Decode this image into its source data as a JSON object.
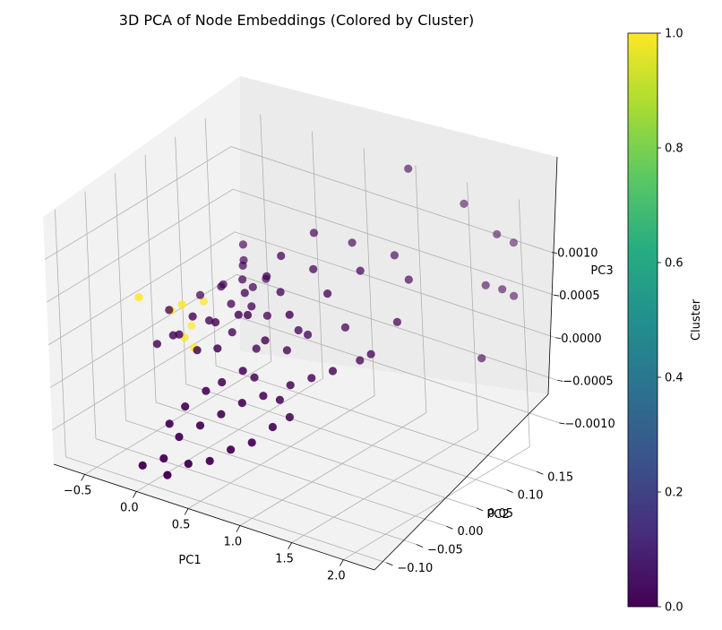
{
  "chart_data": {
    "type": "scatter",
    "title": "3D PCA of Node Embeddings (Colored by Cluster)",
    "xlabel": "PC1",
    "ylabel": "PC2",
    "zlabel": "PC3",
    "colorbar_label": "Cluster",
    "xlim": [
      -0.8,
      2.3
    ],
    "ylim": [
      -0.12,
      0.19
    ],
    "zlim": [
      -0.0014,
      0.0015
    ],
    "x_ticks": [
      "−0.5",
      "0.0",
      "0.5",
      "1.0",
      "1.5",
      "2.0"
    ],
    "y_ticks": [
      "−0.10",
      "−0.05",
      "0.00",
      "0.05",
      "0.10",
      "0.15"
    ],
    "z_ticks": [
      "−0.0010",
      "−0.0005",
      "0.0000",
      "0.0005",
      "0.0010"
    ],
    "colorbar_ticks": [
      "0.0",
      "0.2",
      "0.4",
      "0.6",
      "0.8",
      "1.0"
    ],
    "colormap": "viridis",
    "colorbar_range": [
      0.0,
      1.0
    ],
    "grid": true,
    "colors": {
      "cluster_0": "#440154",
      "cluster_1": "#fde725",
      "pane": "#f2f2f2",
      "grid": "#b0b0b0"
    },
    "series": [
      {
        "values": [
          {
            "x": -0.2,
            "y": 0.0,
            "z": 0.0002,
            "c": 1
          },
          {
            "x": -0.55,
            "y": 0.04,
            "z": -0.00018,
            "c": 1
          },
          {
            "x": -0.6,
            "y": 0.08,
            "z": -0.00055,
            "c": 1
          },
          {
            "x": -0.35,
            "y": 0.06,
            "z": -8e-05,
            "c": 1
          },
          {
            "x": -0.25,
            "y": 0.01,
            "z": -0.00025,
            "c": 1
          },
          {
            "x": -0.5,
            "y": -0.02,
            "z": 0.00025,
            "c": 1
          },
          {
            "x": -0.22,
            "y": 0.02,
            "z": -0.0004,
            "c": 1
          },
          {
            "x": -0.32,
            "y": 0.05,
            "z": 5e-05,
            "c": 0
          },
          {
            "x": -0.15,
            "y": 0.06,
            "z": 0.0002,
            "c": 0
          },
          {
            "x": -0.05,
            "y": 0.04,
            "z": 0.0003,
            "c": 0
          },
          {
            "x": 0.05,
            "y": 0.06,
            "z": 0.0005,
            "c": 0
          },
          {
            "x": 0.1,
            "y": 0.03,
            "z": 0.0002,
            "c": 0
          },
          {
            "x": 0.2,
            "y": 0.05,
            "z": 0.00035,
            "c": 0
          },
          {
            "x": 0.3,
            "y": 0.02,
            "z": 0.00045,
            "c": 0
          },
          {
            "x": 0.4,
            "y": 0.04,
            "z": 0.0006,
            "c": 0
          },
          {
            "x": 0.15,
            "y": 0.08,
            "z": 0.0003,
            "c": 0
          },
          {
            "x": -0.1,
            "y": 0.0,
            "z": 0.0001,
            "c": 0
          },
          {
            "x": 0.0,
            "y": 0.01,
            "z": 5e-05,
            "c": 0
          },
          {
            "x": 0.12,
            "y": 0.0,
            "z": 0.00012,
            "c": 0
          },
          {
            "x": 0.22,
            "y": 0.01,
            "z": 0.0,
            "c": 0
          },
          {
            "x": -0.45,
            "y": 0.02,
            "z": -5e-05,
            "c": 0
          },
          {
            "x": -0.4,
            "y": -0.01,
            "z": -0.0003,
            "c": 0
          },
          {
            "x": -0.3,
            "y": 0.0,
            "z": -0.0002,
            "c": 0
          },
          {
            "x": -0.18,
            "y": -0.01,
            "z": -0.0001,
            "c": 0
          },
          {
            "x": 0.05,
            "y": -0.02,
            "z": -0.00015,
            "c": 0
          },
          {
            "x": 0.35,
            "y": 0.0,
            "z": 0.0003,
            "c": 0
          },
          {
            "x": 0.55,
            "y": 0.04,
            "z": 0.0009,
            "c": 0
          },
          {
            "x": 0.7,
            "y": 0.07,
            "z": 0.0011,
            "c": 0
          },
          {
            "x": 0.8,
            "y": 0.05,
            "z": 0.0008,
            "c": 0
          },
          {
            "x": 0.95,
            "y": 0.09,
            "z": 0.001,
            "c": 0
          },
          {
            "x": 0.65,
            "y": 0.02,
            "z": 0.0006,
            "c": 0
          },
          {
            "x": 0.5,
            "y": -0.01,
            "z": 0.0004,
            "c": 0
          },
          {
            "x": 0.85,
            "y": 0.0,
            "z": 0.0005,
            "c": 0
          },
          {
            "x": 1.05,
            "y": 0.03,
            "z": 0.0007,
            "c": 0
          },
          {
            "x": 1.2,
            "y": 0.06,
            "z": 0.0009,
            "c": 0
          },
          {
            "x": 1.3,
            "y": 0.1,
            "z": 0.00095,
            "c": 0
          },
          {
            "x": 1.55,
            "y": 0.08,
            "z": 0.00085,
            "c": 0
          },
          {
            "x": 1.7,
            "y": 0.15,
            "z": 0.0015,
            "c": 0
          },
          {
            "x": 1.35,
            "y": 0.12,
            "z": 0.0019,
            "c": 0
          },
          {
            "x": 0.45,
            "y": 0.03,
            "z": 0.0002,
            "c": 0
          },
          {
            "x": 0.25,
            "y": -0.02,
            "z": -5e-05,
            "c": 0
          },
          {
            "x": 0.6,
            "y": 0.0,
            "z": 0.0001,
            "c": 0
          },
          {
            "x": 0.75,
            "y": 0.01,
            "z": 0.0,
            "c": 0
          },
          {
            "x": 0.55,
            "y": -0.03,
            "z": -0.00015,
            "c": 0
          },
          {
            "x": 0.4,
            "y": -0.04,
            "z": -0.0003,
            "c": 0
          },
          {
            "x": 0.3,
            "y": -0.05,
            "z": -0.0004,
            "c": 0
          },
          {
            "x": 0.15,
            "y": -0.06,
            "z": -0.0006,
            "c": 0
          },
          {
            "x": 0.05,
            "y": -0.07,
            "z": -0.0008,
            "c": 0
          },
          {
            "x": 0.2,
            "y": -0.08,
            "z": -0.00085,
            "c": 0
          },
          {
            "x": 0.35,
            "y": -0.07,
            "z": -0.0007,
            "c": 0
          },
          {
            "x": 0.5,
            "y": -0.06,
            "z": -0.00055,
            "c": 0
          },
          {
            "x": 0.65,
            "y": -0.05,
            "z": -0.0004,
            "c": 0
          },
          {
            "x": 0.8,
            "y": -0.04,
            "z": -0.0003,
            "c": 0
          },
          {
            "x": 0.95,
            "y": -0.02,
            "z": -0.0002,
            "c": 0
          },
          {
            "x": 1.1,
            "y": -0.01,
            "z": -0.0001,
            "c": 0
          },
          {
            "x": 1.25,
            "y": 0.0,
            "z": 0.0,
            "c": 0
          },
          {
            "x": 1.4,
            "y": 0.02,
            "z": 0.0001,
            "c": 0
          },
          {
            "x": 1.15,
            "y": 0.04,
            "z": 0.0003,
            "c": 0
          },
          {
            "x": 0.9,
            "y": 0.02,
            "z": 0.0002,
            "c": 0
          },
          {
            "x": 0.7,
            "y": -0.08,
            "z": -0.0008,
            "c": 0
          },
          {
            "x": 0.55,
            "y": -0.09,
            "z": -0.00095,
            "c": 0
          },
          {
            "x": 0.4,
            "y": -0.1,
            "z": -0.001,
            "c": 0
          },
          {
            "x": 0.85,
            "y": -0.07,
            "z": -0.0007,
            "c": 0
          },
          {
            "x": 1.0,
            "y": -0.06,
            "z": -0.0005,
            "c": 0
          },
          {
            "x": 0.1,
            "y": -0.09,
            "z": -0.0011,
            "c": 0
          },
          {
            "x": -0.05,
            "y": -0.1,
            "z": -0.0012,
            "c": 0
          },
          {
            "x": 0.25,
            "y": -0.11,
            "z": -0.00115,
            "c": 0
          },
          {
            "x": 0.6,
            "y": -0.02,
            "z": -0.00025,
            "c": 0
          },
          {
            "x": 0.45,
            "y": 0.01,
            "z": -0.0001,
            "c": 0
          },
          {
            "x": 0.75,
            "y": 0.03,
            "z": 0.00015,
            "c": 0
          },
          {
            "x": 0.9,
            "y": -0.03,
            "z": -0.00035,
            "c": 0
          },
          {
            "x": 1.05,
            "y": -0.04,
            "z": -0.00045,
            "c": 0
          },
          {
            "x": 0.3,
            "y": 0.03,
            "z": 0.00025,
            "c": 0
          },
          {
            "x": 0.1,
            "y": 0.05,
            "z": 0.0004,
            "c": 0
          },
          {
            "x": 0.0,
            "y": 0.07,
            "z": 0.0005,
            "c": 0
          },
          {
            "x": -0.12,
            "y": 0.09,
            "z": 0.00055,
            "c": 0
          },
          {
            "x": 1.95,
            "y": 0.16,
            "z": 0.0012,
            "c": 0
          },
          {
            "x": 2.05,
            "y": 0.17,
            "z": 0.0011,
            "c": 0
          },
          {
            "x": 2.1,
            "y": 0.14,
            "z": 0.0007,
            "c": 0
          },
          {
            "x": 2.0,
            "y": 0.13,
            "z": 0.00075,
            "c": 0
          },
          {
            "x": 2.15,
            "y": 0.15,
            "z": 0.0006,
            "c": 0
          },
          {
            "x": 2.05,
            "y": 0.11,
            "z": 0.0,
            "c": 0
          },
          {
            "x": 1.6,
            "y": 0.05,
            "z": 0.0005,
            "c": 0
          },
          {
            "x": 1.45,
            "y": 0.03,
            "z": 0.00015,
            "c": 0
          }
        ]
      }
    ]
  }
}
